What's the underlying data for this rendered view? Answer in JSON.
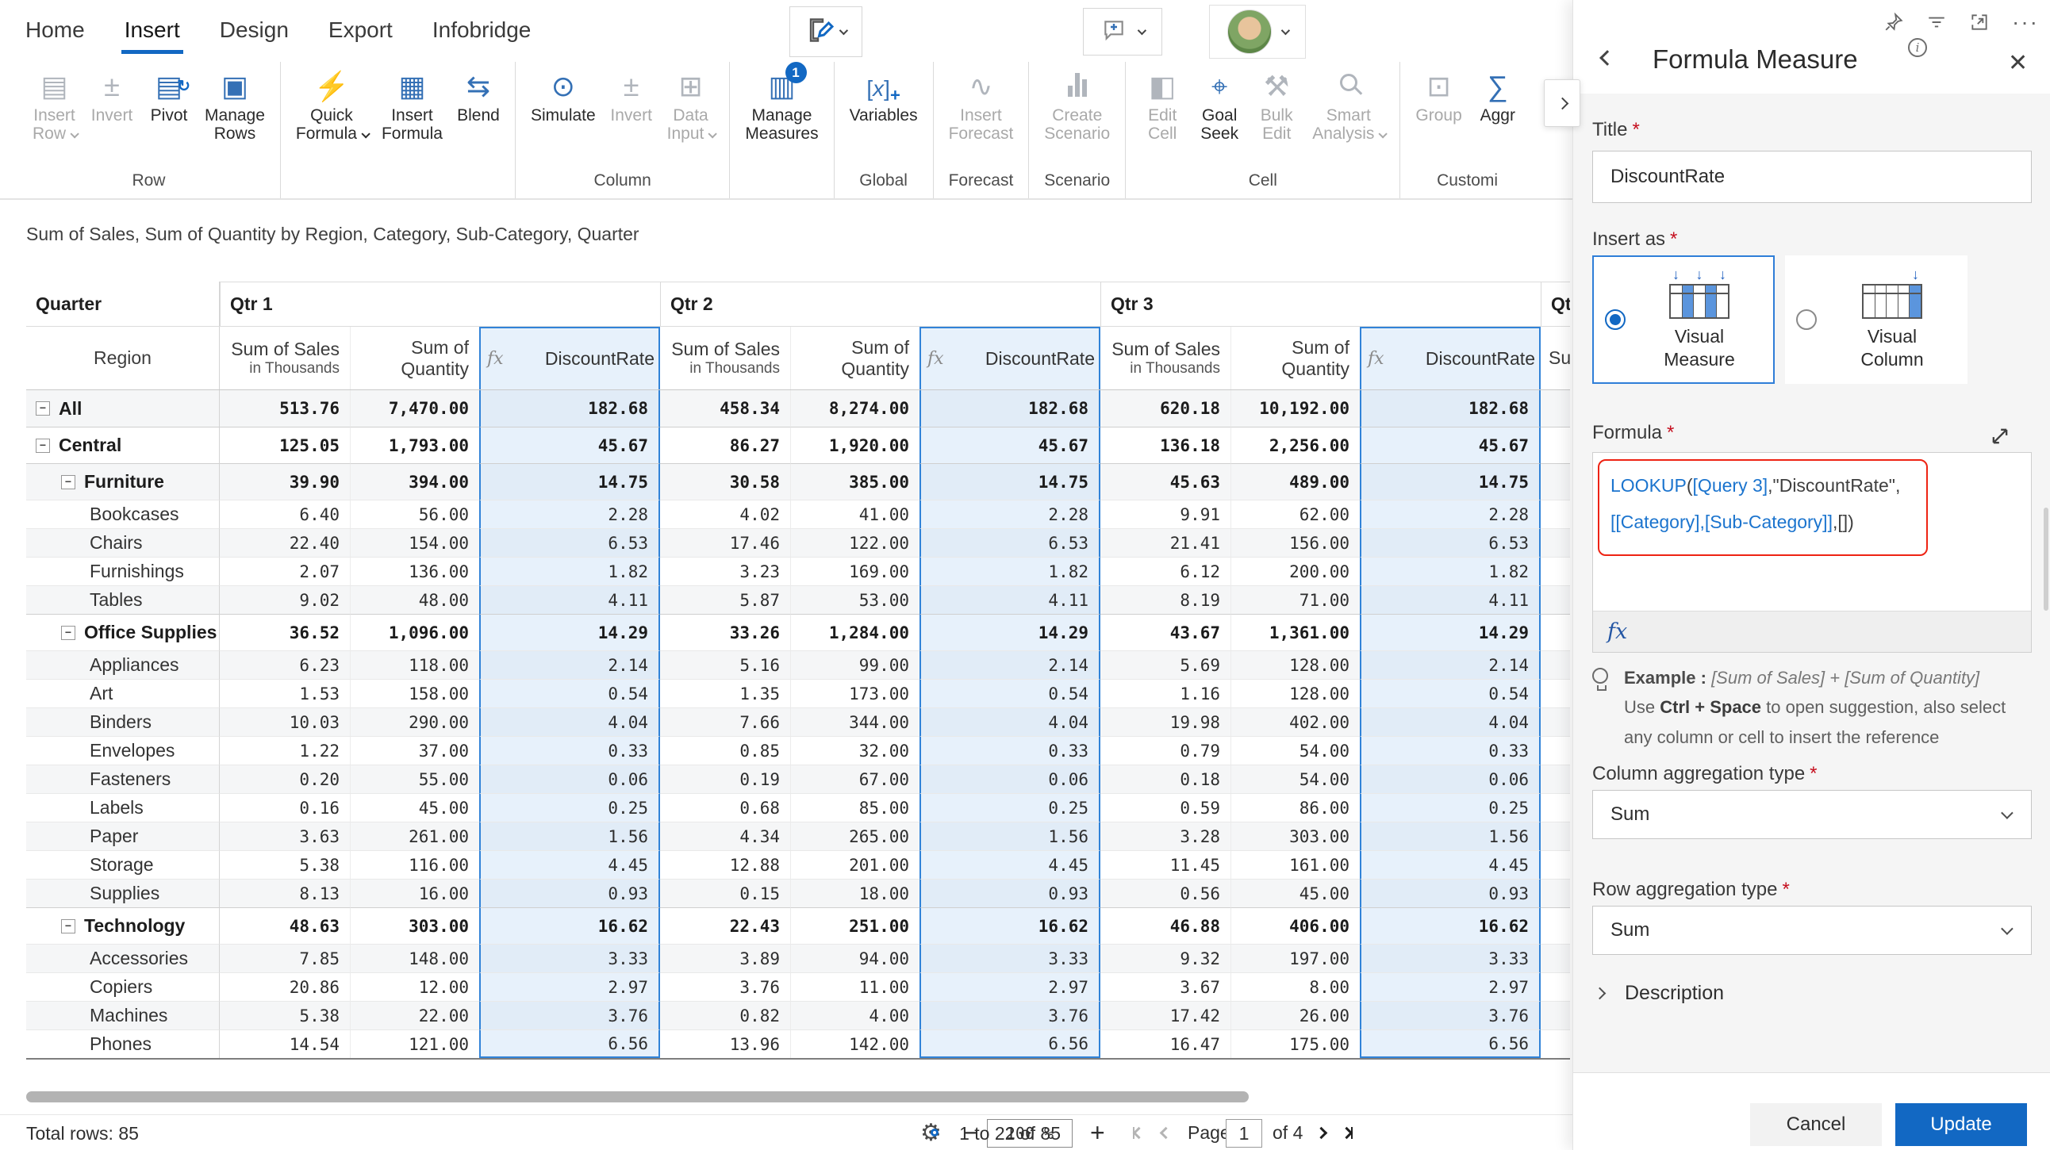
{
  "tabs": [
    {
      "label": "Home",
      "active": false
    },
    {
      "label": "Insert",
      "active": true
    },
    {
      "label": "Design",
      "active": false
    },
    {
      "label": "Export",
      "active": false
    },
    {
      "label": "Infobridge",
      "active": false
    }
  ],
  "topbar": {
    "edit_icon": "pen-edit-icon",
    "comment_icon": "comment-plus-icon",
    "avatar_icon": "user-avatar",
    "header_icons": [
      "pin-icon",
      "filter-icon",
      "focus-mode-icon",
      "more-options-icon"
    ]
  },
  "ribbon": {
    "groups": [
      {
        "label": "Row",
        "buttons": [
          {
            "label": "Insert Row",
            "icon": "insert-row-icon",
            "disabled": true,
            "dropdown": true
          },
          {
            "label": "Invert",
            "icon": "invert-icon",
            "disabled": true
          },
          {
            "label": "Pivot",
            "icon": "pivot-icon",
            "disabled": false
          },
          {
            "label": "Manage Rows",
            "icon": "manage-rows-icon",
            "disabled": false
          }
        ]
      },
      {
        "label": "",
        "buttons": [
          {
            "label": "Quick Formula",
            "icon": "quick-formula-icon",
            "disabled": false,
            "dropdown": true
          },
          {
            "label": "Insert Formula",
            "icon": "insert-formula-icon",
            "disabled": false
          },
          {
            "label": "Blend",
            "icon": "blend-icon",
            "disabled": false
          }
        ]
      },
      {
        "label": "Column",
        "buttons": [
          {
            "label": "Simulate",
            "icon": "simulate-icon",
            "disabled": false
          },
          {
            "label": "Invert",
            "icon": "invert-icon",
            "disabled": true
          },
          {
            "label": "Data Input",
            "icon": "data-input-icon",
            "disabled": true,
            "dropdown": true
          }
        ]
      },
      {
        "label": "",
        "buttons": [
          {
            "label": "Manage Measures",
            "icon": "manage-measures-icon",
            "disabled": false,
            "badge": "1"
          }
        ]
      },
      {
        "label": "Global",
        "buttons": [
          {
            "label": "Variables",
            "icon": "variables-icon",
            "disabled": false
          }
        ]
      },
      {
        "label": "Forecast",
        "buttons": [
          {
            "label": "Insert Forecast",
            "icon": "insert-forecast-icon",
            "disabled": true
          }
        ]
      },
      {
        "label": "Scenario",
        "buttons": [
          {
            "label": "Create Scenario",
            "icon": "create-scenario-icon",
            "disabled": true
          }
        ]
      },
      {
        "label": "Cell",
        "buttons": [
          {
            "label": "Edit Cell",
            "icon": "edit-cell-icon",
            "disabled": true
          },
          {
            "label": "Goal Seek",
            "icon": "goal-seek-icon",
            "disabled": false
          },
          {
            "label": "Bulk Edit",
            "icon": "bulk-edit-icon",
            "disabled": true
          },
          {
            "label": "Smart Analysis",
            "icon": "smart-analysis-icon",
            "disabled": true,
            "dropdown": true
          }
        ]
      },
      {
        "label": "Customi",
        "buttons": [
          {
            "label": "Group",
            "icon": "group-icon",
            "disabled": true
          },
          {
            "label": "Aggr",
            "icon": "aggregate-icon",
            "disabled": false
          }
        ]
      }
    ]
  },
  "table": {
    "title": "Sum of Sales, Sum of Quantity by Region, Category, Sub-Category, Quarter",
    "corner_label": "Quarter",
    "row_header": "Region",
    "quarters": [
      "Qtr 1",
      "Qtr 2",
      "Qtr 3",
      "Qt"
    ],
    "cut_measure_header": "Su",
    "measure_headers": {
      "sales": "Sum of Sales",
      "sales_sub": "in Thousands",
      "quantity_line1": "Sum of",
      "quantity_line2": "Quantity",
      "formula": "DiscountRate",
      "fx": "fx"
    },
    "rows": [
      {
        "label": "All",
        "level": 0,
        "expand": true,
        "bold": true,
        "q1": [
          "513.76",
          "7,470.00",
          "182.68"
        ],
        "q2": [
          "458.34",
          "8,274.00",
          "182.68"
        ],
        "q3": [
          "620.18",
          "10,192.00",
          "182.68"
        ]
      },
      {
        "label": "Central",
        "level": 0,
        "expand": true,
        "bold": true,
        "q1": [
          "125.05",
          "1,793.00",
          "45.67"
        ],
        "q2": [
          "86.27",
          "1,920.00",
          "45.67"
        ],
        "q3": [
          "136.18",
          "2,256.00",
          "45.67"
        ]
      },
      {
        "label": "Furniture",
        "level": 1,
        "expand": true,
        "bold": true,
        "q1": [
          "39.90",
          "394.00",
          "14.75"
        ],
        "q2": [
          "30.58",
          "385.00",
          "14.75"
        ],
        "q3": [
          "45.63",
          "489.00",
          "14.75"
        ]
      },
      {
        "label": "Bookcases",
        "level": 2,
        "expand": false,
        "bold": false,
        "q1": [
          "6.40",
          "56.00",
          "2.28"
        ],
        "q2": [
          "4.02",
          "41.00",
          "2.28"
        ],
        "q3": [
          "9.91",
          "62.00",
          "2.28"
        ]
      },
      {
        "label": "Chairs",
        "level": 2,
        "expand": false,
        "bold": false,
        "q1": [
          "22.40",
          "154.00",
          "6.53"
        ],
        "q2": [
          "17.46",
          "122.00",
          "6.53"
        ],
        "q3": [
          "21.41",
          "156.00",
          "6.53"
        ]
      },
      {
        "label": "Furnishings",
        "level": 2,
        "expand": false,
        "bold": false,
        "q1": [
          "2.07",
          "136.00",
          "1.82"
        ],
        "q2": [
          "3.23",
          "169.00",
          "1.82"
        ],
        "q3": [
          "6.12",
          "200.00",
          "1.82"
        ]
      },
      {
        "label": "Tables",
        "level": 2,
        "expand": false,
        "bold": false,
        "q1": [
          "9.02",
          "48.00",
          "4.11"
        ],
        "q2": [
          "5.87",
          "53.00",
          "4.11"
        ],
        "q3": [
          "8.19",
          "71.00",
          "4.11"
        ]
      },
      {
        "label": "Office Supplies",
        "level": 1,
        "expand": true,
        "bold": true,
        "q1": [
          "36.52",
          "1,096.00",
          "14.29"
        ],
        "q2": [
          "33.26",
          "1,284.00",
          "14.29"
        ],
        "q3": [
          "43.67",
          "1,361.00",
          "14.29"
        ]
      },
      {
        "label": "Appliances",
        "level": 2,
        "expand": false,
        "bold": false,
        "q1": [
          "6.23",
          "118.00",
          "2.14"
        ],
        "q2": [
          "5.16",
          "99.00",
          "2.14"
        ],
        "q3": [
          "5.69",
          "128.00",
          "2.14"
        ]
      },
      {
        "label": "Art",
        "level": 2,
        "expand": false,
        "bold": false,
        "q1": [
          "1.53",
          "158.00",
          "0.54"
        ],
        "q2": [
          "1.35",
          "173.00",
          "0.54"
        ],
        "q3": [
          "1.16",
          "128.00",
          "0.54"
        ]
      },
      {
        "label": "Binders",
        "level": 2,
        "expand": false,
        "bold": false,
        "q1": [
          "10.03",
          "290.00",
          "4.04"
        ],
        "q2": [
          "7.66",
          "344.00",
          "4.04"
        ],
        "q3": [
          "19.98",
          "402.00",
          "4.04"
        ]
      },
      {
        "label": "Envelopes",
        "level": 2,
        "expand": false,
        "bold": false,
        "q1": [
          "1.22",
          "37.00",
          "0.33"
        ],
        "q2": [
          "0.85",
          "32.00",
          "0.33"
        ],
        "q3": [
          "0.79",
          "54.00",
          "0.33"
        ]
      },
      {
        "label": "Fasteners",
        "level": 2,
        "expand": false,
        "bold": false,
        "q1": [
          "0.20",
          "55.00",
          "0.06"
        ],
        "q2": [
          "0.19",
          "67.00",
          "0.06"
        ],
        "q3": [
          "0.18",
          "54.00",
          "0.06"
        ]
      },
      {
        "label": "Labels",
        "level": 2,
        "expand": false,
        "bold": false,
        "q1": [
          "0.16",
          "45.00",
          "0.25"
        ],
        "q2": [
          "0.68",
          "85.00",
          "0.25"
        ],
        "q3": [
          "0.59",
          "86.00",
          "0.25"
        ]
      },
      {
        "label": "Paper",
        "level": 2,
        "expand": false,
        "bold": false,
        "q1": [
          "3.63",
          "261.00",
          "1.56"
        ],
        "q2": [
          "4.34",
          "265.00",
          "1.56"
        ],
        "q3": [
          "3.28",
          "303.00",
          "1.56"
        ]
      },
      {
        "label": "Storage",
        "level": 2,
        "expand": false,
        "bold": false,
        "q1": [
          "5.38",
          "116.00",
          "4.45"
        ],
        "q2": [
          "12.88",
          "201.00",
          "4.45"
        ],
        "q3": [
          "11.45",
          "161.00",
          "4.45"
        ]
      },
      {
        "label": "Supplies",
        "level": 2,
        "expand": false,
        "bold": false,
        "q1": [
          "8.13",
          "16.00",
          "0.93"
        ],
        "q2": [
          "0.15",
          "18.00",
          "0.93"
        ],
        "q3": [
          "0.56",
          "45.00",
          "0.93"
        ]
      },
      {
        "label": "Technology",
        "level": 1,
        "expand": true,
        "bold": true,
        "q1": [
          "48.63",
          "303.00",
          "16.62"
        ],
        "q2": [
          "22.43",
          "251.00",
          "16.62"
        ],
        "q3": [
          "46.88",
          "406.00",
          "16.62"
        ]
      },
      {
        "label": "Accessories",
        "level": 2,
        "expand": false,
        "bold": false,
        "q1": [
          "7.85",
          "148.00",
          "3.33"
        ],
        "q2": [
          "3.89",
          "94.00",
          "3.33"
        ],
        "q3": [
          "9.32",
          "197.00",
          "3.33"
        ]
      },
      {
        "label": "Copiers",
        "level": 2,
        "expand": false,
        "bold": false,
        "q1": [
          "20.86",
          "12.00",
          "2.97"
        ],
        "q2": [
          "3.76",
          "11.00",
          "2.97"
        ],
        "q3": [
          "3.67",
          "8.00",
          "2.97"
        ]
      },
      {
        "label": "Machines",
        "level": 2,
        "expand": false,
        "bold": false,
        "q1": [
          "5.38",
          "22.00",
          "3.76"
        ],
        "q2": [
          "0.82",
          "4.00",
          "3.76"
        ],
        "q3": [
          "17.42",
          "26.00",
          "3.76"
        ]
      },
      {
        "label": "Phones",
        "level": 2,
        "expand": false,
        "bold": false,
        "q1": [
          "14.54",
          "121.00",
          "6.56"
        ],
        "q2": [
          "13.96",
          "142.00",
          "6.56"
        ],
        "q3": [
          "16.47",
          "175.00",
          "6.56"
        ]
      }
    ]
  },
  "statusbar": {
    "total_rows": "Total rows: 85",
    "zoom_value": "100 %",
    "zoom_out": "−",
    "zoom_in": "+",
    "page_label": "Page",
    "page_value": "1",
    "page_of": "of 4",
    "range": "1 to 22 of 85"
  },
  "panel": {
    "title": "Formula Measure",
    "title_label": "Title",
    "title_value": "DiscountRate",
    "insert_as_label": "Insert as",
    "options": [
      {
        "label": "Visual Measure",
        "selected": true,
        "icon": "visual-measure-icon"
      },
      {
        "label": "Visual Column",
        "selected": false,
        "icon": "visual-column-icon"
      }
    ],
    "formula_label": "Formula",
    "formula_lines": [
      [
        {
          "text": "LOOKUP",
          "style": "fn"
        },
        {
          "text": "(",
          "style": "plain"
        },
        {
          "text": "[Query 3]",
          "style": "ref"
        },
        {
          "text": ",",
          "style": "plain"
        },
        {
          "text": "\"DiscountRate\",",
          "style": "plain"
        }
      ],
      [
        {
          "text": "[[Category],[Sub-Category]]",
          "style": "ref"
        },
        {
          "text": ",[])",
          "style": "plain"
        }
      ]
    ],
    "fx_label": "fx",
    "example_label": "Example :",
    "example_text": "[Sum of Sales] + [Sum of Quantity]",
    "hint_pre": "Use ",
    "hint_bold": "Ctrl + Space",
    "hint_post": " to open suggestion, also select any column or cell to insert the reference",
    "col_agg_label": "Column aggregation type",
    "col_agg_value": "Sum",
    "row_agg_label": "Row aggregation type",
    "row_agg_value": "Sum",
    "description_label": "Description",
    "cancel_label": "Cancel",
    "update_label": "Update"
  }
}
